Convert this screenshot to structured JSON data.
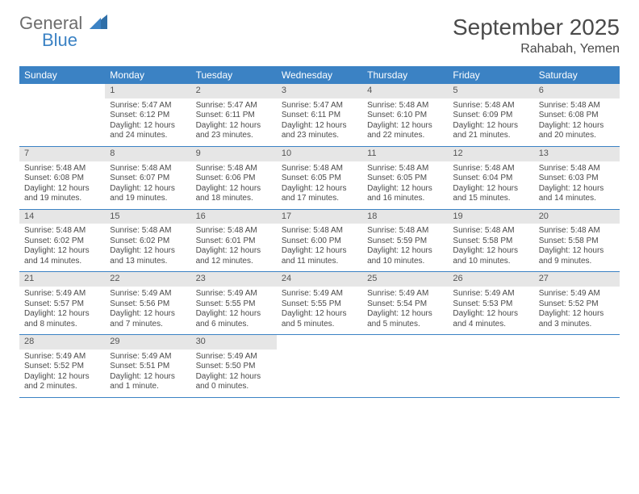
{
  "logo": {
    "general": "General",
    "blue": "Blue"
  },
  "title": "September 2025",
  "location": "Rahabah, Yemen",
  "colors": {
    "header_bg": "#3b82c4",
    "header_fg": "#ffffff",
    "daynum_bg": "#e6e6e6",
    "text": "#4a4a4a",
    "rule": "#3b82c4",
    "logo_gray": "#6d6d6d",
    "logo_blue": "#3b82c4"
  },
  "weekdays": [
    "Sunday",
    "Monday",
    "Tuesday",
    "Wednesday",
    "Thursday",
    "Friday",
    "Saturday"
  ],
  "weeks": [
    [
      {
        "n": "",
        "sr": "",
        "ss": "",
        "dl": ""
      },
      {
        "n": "1",
        "sr": "Sunrise: 5:47 AM",
        "ss": "Sunset: 6:12 PM",
        "dl": "Daylight: 12 hours and 24 minutes."
      },
      {
        "n": "2",
        "sr": "Sunrise: 5:47 AM",
        "ss": "Sunset: 6:11 PM",
        "dl": "Daylight: 12 hours and 23 minutes."
      },
      {
        "n": "3",
        "sr": "Sunrise: 5:47 AM",
        "ss": "Sunset: 6:11 PM",
        "dl": "Daylight: 12 hours and 23 minutes."
      },
      {
        "n": "4",
        "sr": "Sunrise: 5:48 AM",
        "ss": "Sunset: 6:10 PM",
        "dl": "Daylight: 12 hours and 22 minutes."
      },
      {
        "n": "5",
        "sr": "Sunrise: 5:48 AM",
        "ss": "Sunset: 6:09 PM",
        "dl": "Daylight: 12 hours and 21 minutes."
      },
      {
        "n": "6",
        "sr": "Sunrise: 5:48 AM",
        "ss": "Sunset: 6:08 PM",
        "dl": "Daylight: 12 hours and 20 minutes."
      }
    ],
    [
      {
        "n": "7",
        "sr": "Sunrise: 5:48 AM",
        "ss": "Sunset: 6:08 PM",
        "dl": "Daylight: 12 hours and 19 minutes."
      },
      {
        "n": "8",
        "sr": "Sunrise: 5:48 AM",
        "ss": "Sunset: 6:07 PM",
        "dl": "Daylight: 12 hours and 19 minutes."
      },
      {
        "n": "9",
        "sr": "Sunrise: 5:48 AM",
        "ss": "Sunset: 6:06 PM",
        "dl": "Daylight: 12 hours and 18 minutes."
      },
      {
        "n": "10",
        "sr": "Sunrise: 5:48 AM",
        "ss": "Sunset: 6:05 PM",
        "dl": "Daylight: 12 hours and 17 minutes."
      },
      {
        "n": "11",
        "sr": "Sunrise: 5:48 AM",
        "ss": "Sunset: 6:05 PM",
        "dl": "Daylight: 12 hours and 16 minutes."
      },
      {
        "n": "12",
        "sr": "Sunrise: 5:48 AM",
        "ss": "Sunset: 6:04 PM",
        "dl": "Daylight: 12 hours and 15 minutes."
      },
      {
        "n": "13",
        "sr": "Sunrise: 5:48 AM",
        "ss": "Sunset: 6:03 PM",
        "dl": "Daylight: 12 hours and 14 minutes."
      }
    ],
    [
      {
        "n": "14",
        "sr": "Sunrise: 5:48 AM",
        "ss": "Sunset: 6:02 PM",
        "dl": "Daylight: 12 hours and 14 minutes."
      },
      {
        "n": "15",
        "sr": "Sunrise: 5:48 AM",
        "ss": "Sunset: 6:02 PM",
        "dl": "Daylight: 12 hours and 13 minutes."
      },
      {
        "n": "16",
        "sr": "Sunrise: 5:48 AM",
        "ss": "Sunset: 6:01 PM",
        "dl": "Daylight: 12 hours and 12 minutes."
      },
      {
        "n": "17",
        "sr": "Sunrise: 5:48 AM",
        "ss": "Sunset: 6:00 PM",
        "dl": "Daylight: 12 hours and 11 minutes."
      },
      {
        "n": "18",
        "sr": "Sunrise: 5:48 AM",
        "ss": "Sunset: 5:59 PM",
        "dl": "Daylight: 12 hours and 10 minutes."
      },
      {
        "n": "19",
        "sr": "Sunrise: 5:48 AM",
        "ss": "Sunset: 5:58 PM",
        "dl": "Daylight: 12 hours and 10 minutes."
      },
      {
        "n": "20",
        "sr": "Sunrise: 5:48 AM",
        "ss": "Sunset: 5:58 PM",
        "dl": "Daylight: 12 hours and 9 minutes."
      }
    ],
    [
      {
        "n": "21",
        "sr": "Sunrise: 5:49 AM",
        "ss": "Sunset: 5:57 PM",
        "dl": "Daylight: 12 hours and 8 minutes."
      },
      {
        "n": "22",
        "sr": "Sunrise: 5:49 AM",
        "ss": "Sunset: 5:56 PM",
        "dl": "Daylight: 12 hours and 7 minutes."
      },
      {
        "n": "23",
        "sr": "Sunrise: 5:49 AM",
        "ss": "Sunset: 5:55 PM",
        "dl": "Daylight: 12 hours and 6 minutes."
      },
      {
        "n": "24",
        "sr": "Sunrise: 5:49 AM",
        "ss": "Sunset: 5:55 PM",
        "dl": "Daylight: 12 hours and 5 minutes."
      },
      {
        "n": "25",
        "sr": "Sunrise: 5:49 AM",
        "ss": "Sunset: 5:54 PM",
        "dl": "Daylight: 12 hours and 5 minutes."
      },
      {
        "n": "26",
        "sr": "Sunrise: 5:49 AM",
        "ss": "Sunset: 5:53 PM",
        "dl": "Daylight: 12 hours and 4 minutes."
      },
      {
        "n": "27",
        "sr": "Sunrise: 5:49 AM",
        "ss": "Sunset: 5:52 PM",
        "dl": "Daylight: 12 hours and 3 minutes."
      }
    ],
    [
      {
        "n": "28",
        "sr": "Sunrise: 5:49 AM",
        "ss": "Sunset: 5:52 PM",
        "dl": "Daylight: 12 hours and 2 minutes."
      },
      {
        "n": "29",
        "sr": "Sunrise: 5:49 AM",
        "ss": "Sunset: 5:51 PM",
        "dl": "Daylight: 12 hours and 1 minute."
      },
      {
        "n": "30",
        "sr": "Sunrise: 5:49 AM",
        "ss": "Sunset: 5:50 PM",
        "dl": "Daylight: 12 hours and 0 minutes."
      },
      {
        "n": "",
        "sr": "",
        "ss": "",
        "dl": ""
      },
      {
        "n": "",
        "sr": "",
        "ss": "",
        "dl": ""
      },
      {
        "n": "",
        "sr": "",
        "ss": "",
        "dl": ""
      },
      {
        "n": "",
        "sr": "",
        "ss": "",
        "dl": ""
      }
    ]
  ]
}
